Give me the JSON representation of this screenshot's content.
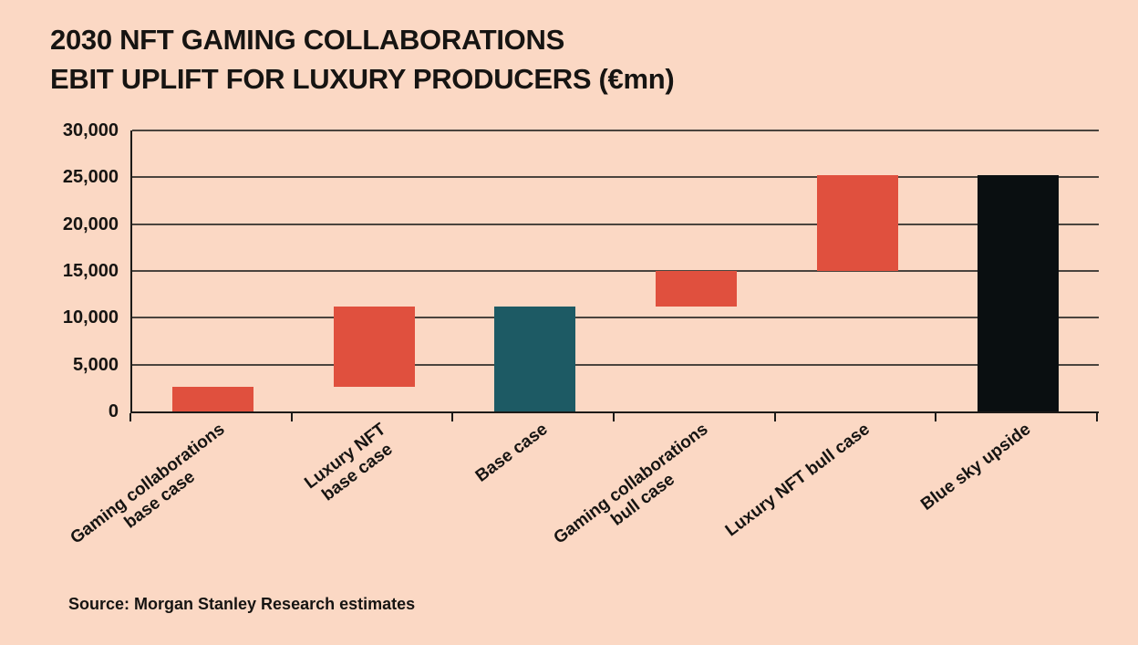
{
  "title": {
    "line1": "2030 NFT GAMING COLLABORATIONS",
    "line2": "EBIT UPLIFT FOR LUXURY PRODUCERS (€mn)"
  },
  "source": "Source: Morgan Stanley Research estimates",
  "colors": {
    "background": "#fbd8c4",
    "bar_red": "#e0503e",
    "bar_teal": "#1d5a64",
    "bar_black": "#0a0f11",
    "grid": "#4a443e",
    "axis": "#1c1a18",
    "text": "#161412"
  },
  "chart_data": {
    "type": "bar",
    "subtype": "waterfall",
    "title": "2030 NFT GAMING COLLABORATIONS EBIT UPLIFT FOR LUXURY PRODUCERS (€mn)",
    "unit": "€mn",
    "ylim": [
      0,
      30000
    ],
    "grid": true,
    "legend": false,
    "yticks": [
      {
        "value": 30000,
        "label": "30,000"
      },
      {
        "value": 25000,
        "label": "25,000"
      },
      {
        "value": 20000,
        "label": "20,000"
      },
      {
        "value": 15000,
        "label": "15,000"
      },
      {
        "value": 10000,
        "label": "10,000"
      },
      {
        "value": 5000,
        "label": "5,000"
      },
      {
        "value": 0,
        "label": "0"
      }
    ],
    "categories": [
      [
        "Gaming collaborations",
        "base case"
      ],
      [
        "Luxury NFT",
        "base case"
      ],
      [
        "Base case"
      ],
      [
        "Gaming collaborations",
        "bull case"
      ],
      [
        "Luxury NFT bull case"
      ],
      [
        "Blue sky upside"
      ]
    ],
    "segments": [
      {
        "category": "Gaming collaborations base case",
        "start": 0,
        "end": 2600,
        "value": 2600,
        "color": "bar_red"
      },
      {
        "category": "Luxury NFT base case",
        "start": 2600,
        "end": 11200,
        "value": 8600,
        "color": "bar_red"
      },
      {
        "category": "Base case",
        "start": 0,
        "end": 11200,
        "value": 11200,
        "color": "bar_teal"
      },
      {
        "category": "Gaming collaborations bull case",
        "start": 11200,
        "end": 15000,
        "value": 3800,
        "color": "bar_red"
      },
      {
        "category": "Luxury NFT bull case",
        "start": 15000,
        "end": 25200,
        "value": 10200,
        "color": "bar_red"
      },
      {
        "category": "Blue sky upside",
        "start": 0,
        "end": 25200,
        "value": 25200,
        "color": "bar_black"
      }
    ]
  }
}
